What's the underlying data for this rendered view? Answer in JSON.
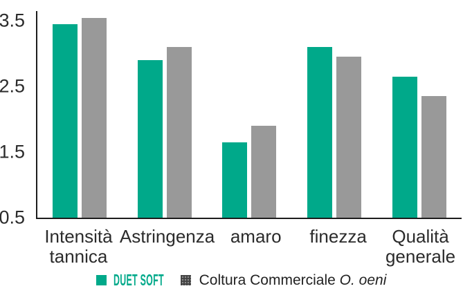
{
  "chart_data": {
    "type": "bar",
    "title": "",
    "xlabel": "",
    "ylabel": "",
    "categories": [
      "Intensità\ntannica",
      "Astringenza",
      "amaro",
      "finezza",
      "Qualità\ngenerale"
    ],
    "series": [
      {
        "name": "DUET SOFT",
        "color": "#00a98a",
        "values": [
          3.45,
          2.9,
          1.65,
          3.1,
          2.65
        ]
      },
      {
        "name": "Coltura Commerciale O. oeni",
        "color": "#999999",
        "values": [
          3.55,
          3.1,
          1.9,
          2.95,
          2.35
        ]
      }
    ],
    "ylim": [
      0.5,
      3.65
    ],
    "ytick_labels": [
      "3.5",
      "2.5",
      "1.5",
      "0.5"
    ],
    "ytick_values": [
      3.5,
      2.5,
      1.5,
      0.5
    ],
    "grid": false,
    "legend_position": "bottom"
  },
  "legend": {
    "item1": {
      "label": "DUET SOFT",
      "swatch_color": "#00a98a",
      "label_color": "#00a98a"
    },
    "item2": {
      "label_text": "Coltura Commerciale",
      "label_italic": "O. oeni",
      "swatch_color": "#424242"
    }
  },
  "colors": {
    "bar_teal": "#00a98a",
    "bar_gray": "#999999",
    "axis": "#1c1c1c",
    "text": "#2b2b2b"
  }
}
